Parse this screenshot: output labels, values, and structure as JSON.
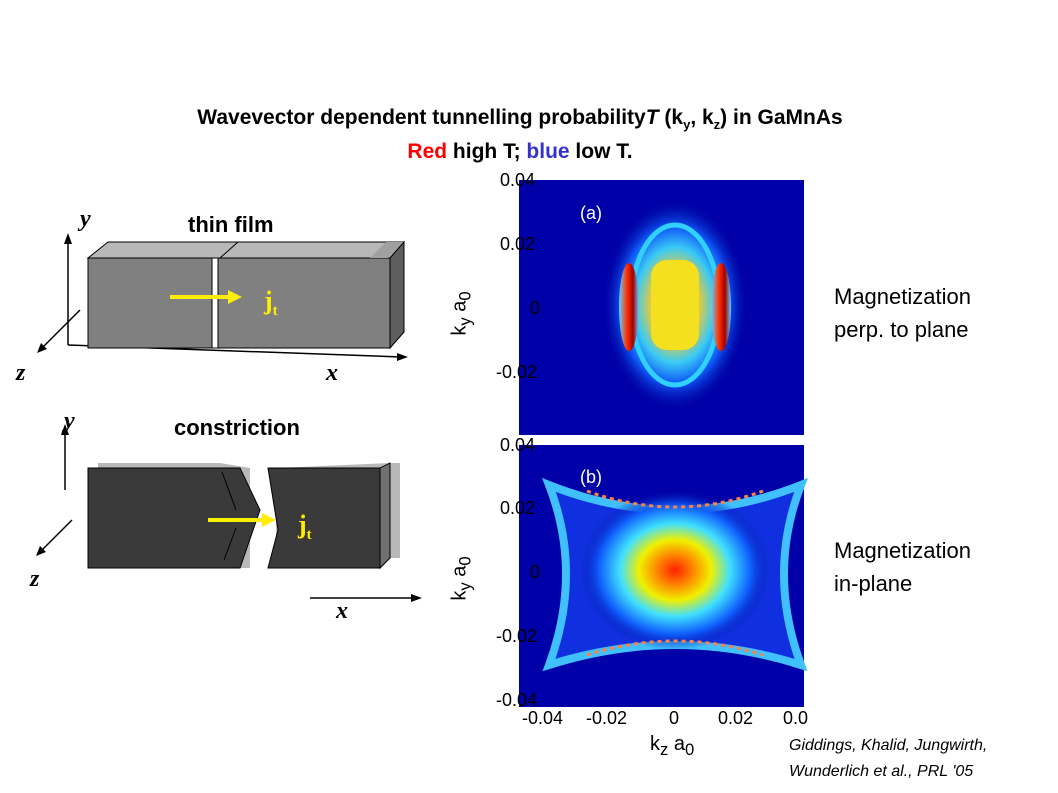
{
  "title": {
    "line1_prefix": "Wavevector dependent tunnelling probability",
    "line1_T": "T",
    "line1_open": " (k",
    "sub_y": "y",
    "comma": ", k",
    "sub_z": "z",
    "line1_suffix": ") in GaMnAs",
    "line2_red": "Red",
    "line2_mid": " high T; ",
    "line2_blue": "blue",
    "line2_end": " low T.",
    "red_color": "#ff0000",
    "blue_color": "#3333cc"
  },
  "diagram_top": {
    "label": "thin film",
    "axis_y": "y",
    "axis_z": "z",
    "axis_x": "x",
    "current": "j",
    "current_sub": "t"
  },
  "diagram_bottom": {
    "label": "constriction",
    "axis_y": "y",
    "axis_z": "z",
    "axis_x": "x",
    "current": "j",
    "current_sub": "t"
  },
  "plots": {
    "panel_a": "(a)",
    "panel_b": "(b)",
    "y_ticks": [
      "0.04",
      "0.02",
      "0",
      "-0.02",
      "-0.04"
    ],
    "x_ticks": [
      "-0.04",
      "-0.02",
      "0",
      "0.02",
      "0.0"
    ],
    "y_axis_label": "k",
    "y_axis_sub1": "y",
    "y_axis_mid": " a",
    "y_axis_sub2": "0",
    "x_axis_label": "k",
    "x_axis_sub1": "z",
    "x_axis_mid": " a",
    "x_axis_sub2": "0"
  },
  "side_labels": {
    "a_line1": "Magnetization",
    "a_line2": "perp. to plane",
    "b_line1": "Magnetization",
    "b_line2": "in-plane"
  },
  "citation": {
    "line1": "Giddings, Khalid, Jungwirth,",
    "line2": "Wunderlich et al., PRL '05"
  }
}
